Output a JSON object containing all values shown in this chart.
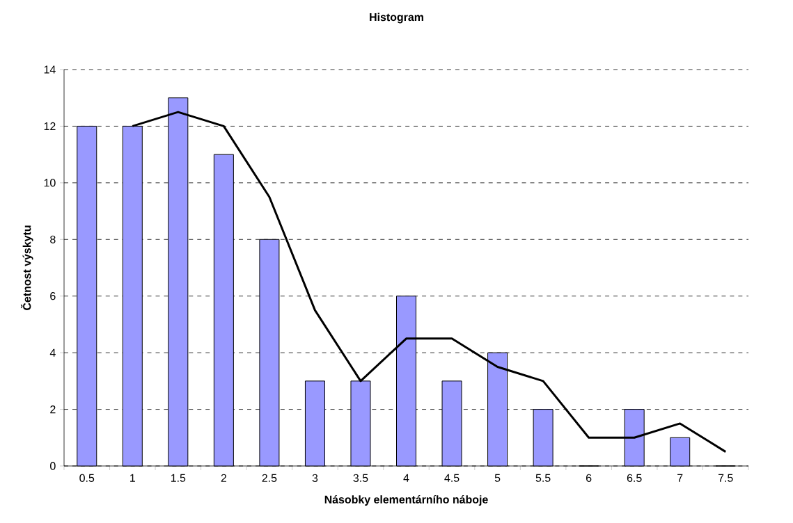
{
  "chart_data": {
    "type": "bar",
    "title": "Histogram",
    "xlabel": "Násobky elementárního náboje",
    "ylabel": "Četnost výskytu",
    "categories": [
      "0.5",
      "1",
      "1.5",
      "2",
      "2.5",
      "3",
      "3.5",
      "4",
      "4.5",
      "5",
      "5.5",
      "6",
      "6.5",
      "7",
      "7.5"
    ],
    "series": [
      {
        "color": "#9999ff",
        "values": [
          12,
          12,
          13,
          11,
          8,
          3,
          3,
          6,
          3,
          4,
          2,
          0,
          2,
          1,
          0
        ]
      },
      {
        "type": "line",
        "color": "#000000",
        "marker": "none",
        "values": [
          null,
          12,
          12.5,
          12,
          9.5,
          5.5,
          3,
          4.5,
          4.5,
          3.5,
          3,
          1,
          1,
          1.5,
          0.5
        ]
      }
    ],
    "ylim": [
      0,
      14
    ],
    "yticks": [
      0,
      2,
      4,
      6,
      8,
      10,
      12,
      14
    ],
    "grid": "y"
  }
}
